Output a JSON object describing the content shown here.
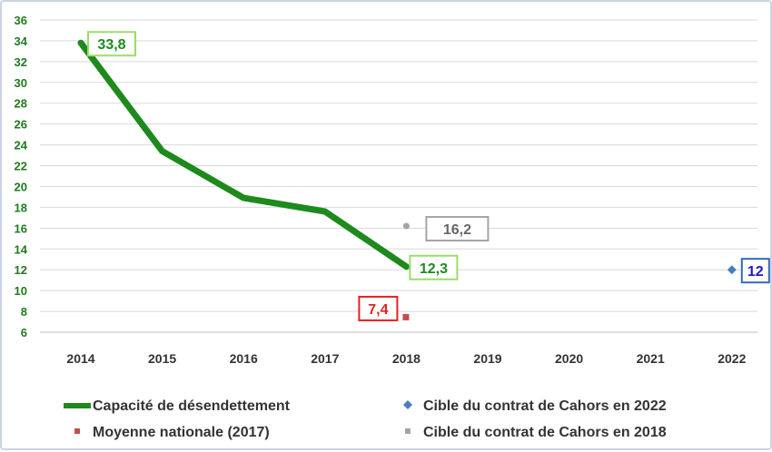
{
  "chart_data": {
    "type": "line",
    "title": "",
    "xlabel": "",
    "ylabel": "",
    "x": [
      "2014",
      "2015",
      "2016",
      "2017",
      "2018",
      "2019",
      "2020",
      "2021",
      "2022"
    ],
    "yticks": [
      "6",
      "8",
      "10",
      "12",
      "14",
      "16",
      "18",
      "20",
      "22",
      "24",
      "26",
      "28",
      "30",
      "32",
      "34",
      "36"
    ],
    "ylim": [
      6,
      36
    ],
    "grid": true,
    "legend_position": "bottom",
    "series": [
      {
        "name": "Capacité de désendettement",
        "kind": "line",
        "color": "#1e8a1e",
        "label_border": "#9edb6a",
        "label_color": "#1e8a1e",
        "points": [
          {
            "x": "2014",
            "y": 33.8,
            "label": "33,8"
          },
          {
            "x": "2015",
            "y": 23.4
          },
          {
            "x": "2016",
            "y": 18.9
          },
          {
            "x": "2017",
            "y": 17.6
          },
          {
            "x": "2018",
            "y": 12.3,
            "label": "12,3"
          }
        ]
      },
      {
        "name": "Moyenne nationale (2017)",
        "kind": "square",
        "color": "#c0504d",
        "label_border": "#e32222",
        "label_color": "#e32222",
        "points": [
          {
            "x": "2018",
            "y": 7.4,
            "label": "7,4"
          }
        ]
      },
      {
        "name": "Cible du contrat de Cahors en 2022",
        "kind": "diamond",
        "color": "#4a7ebb",
        "label_border": "#2f6ac0",
        "label_color": "#1a1acc",
        "points": [
          {
            "x": "2022",
            "y": 12,
            "label": "12"
          }
        ]
      },
      {
        "name": "Cible du contrat de Cahors en 2018",
        "kind": "circle",
        "color": "#a5a5a5",
        "label_border": "#a5a5a5",
        "label_color": "#666666",
        "points": [
          {
            "x": "2018",
            "y": 16.2,
            "label": "16,2"
          }
        ]
      }
    ]
  }
}
